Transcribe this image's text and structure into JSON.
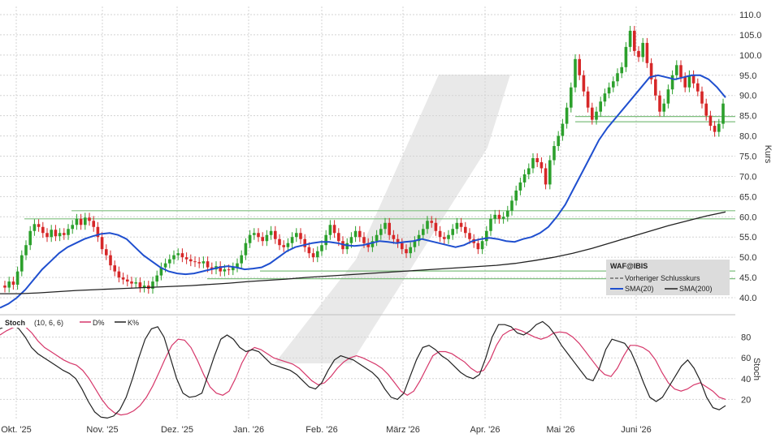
{
  "chart_data": [
    {
      "type": "candlestick",
      "ylabel": "Kurs",
      "ylim": [
        37,
        112
      ],
      "y_ticks": [
        "40.0",
        "45.0",
        "50.0",
        "55.0",
        "60.0",
        "65.0",
        "70.0",
        "75.0",
        "80.0",
        "85.0",
        "90.0",
        "95.0",
        "100.0",
        "105.0",
        "110.0"
      ],
      "x_ticks": [
        "Okt. '25",
        "Nov. '25",
        "Dez. '25",
        "Jan. '26",
        "Feb. '26",
        "März '26",
        "Apr. '26",
        "Mai '26",
        "Juni '26"
      ],
      "grid": true,
      "legend": {
        "placement": "lower-right",
        "title": "WAF@IBIS",
        "entries": [
          {
            "label": "Vorheriger Schlusskurs",
            "style": "dashed",
            "color": "#333333"
          },
          {
            "label": "SMA(20)",
            "color": "#1f4fcf"
          },
          {
            "label": "SMA(200)",
            "color": "#222222"
          }
        ]
      },
      "candles": {
        "up_color": "#2ca02c",
        "down_color": "#d62728",
        "close": [
          42.5,
          44.0,
          43.2,
          46.5,
          50.5,
          53.0,
          56.5,
          58.2,
          57.5,
          56.0,
          55.0,
          56.8,
          55.2,
          56.0,
          55.5,
          57.0,
          58.0,
          59.5,
          58.0,
          59.8,
          59.0,
          57.5,
          55.0,
          52.0,
          50.5,
          48.0,
          46.5,
          45.0,
          44.5,
          44.0,
          43.5,
          43.8,
          42.5,
          43.0,
          42.2,
          44.0,
          45.5,
          47.5,
          48.5,
          49.5,
          50.5,
          51.0,
          50.0,
          49.5,
          49.0,
          48.8,
          48.5,
          49.0,
          47.5,
          47.0,
          47.8,
          46.5,
          47.0,
          46.8,
          47.5,
          48.5,
          50.5,
          53.5,
          55.5,
          56.0,
          55.0,
          54.0,
          55.5,
          56.5,
          54.5,
          53.0,
          52.5,
          53.5,
          55.0,
          56.0,
          54.5,
          52.5,
          51.0,
          50.0,
          51.5,
          53.0,
          55.5,
          58.0,
          56.0,
          54.0,
          52.0,
          53.5,
          55.0,
          56.5,
          55.0,
          53.5,
          52.5,
          54.0,
          55.5,
          57.0,
          58.5,
          55.5,
          54.5,
          53.5,
          52.0,
          51.0,
          52.5,
          54.0,
          55.5,
          57.0,
          59.0,
          58.5,
          56.5,
          55.0,
          54.5,
          55.5,
          57.0,
          58.5,
          57.5,
          56.0,
          54.5,
          53.5,
          52.0,
          54.0,
          56.5,
          59.5,
          60.5,
          59.5,
          60.0,
          61.5,
          64.0,
          66.5,
          68.5,
          70.5,
          72.0,
          74.5,
          73.5,
          72.0,
          68.0,
          74.0,
          77.5,
          80.0,
          83.0,
          87.0,
          92.0,
          99.0,
          95.0,
          91.0,
          87.0,
          84.0,
          86.0,
          88.5,
          90.5,
          92.0,
          93.5,
          95.5,
          97.0,
          102.0,
          106.0,
          101.0,
          99.5,
          103.0,
          98.0,
          94.0,
          90.0,
          86.0,
          88.0,
          91.5,
          95.0,
          97.5,
          94.5,
          92.0,
          95.0,
          93.0,
          91.0,
          88.0,
          85.0,
          82.5,
          81.0,
          83.0,
          88.0
        ],
        "open": [
          43.0,
          42.5,
          44.0,
          43.2,
          46.5,
          50.5,
          53.0,
          56.5,
          58.2,
          57.5,
          56.0,
          55.0,
          56.8,
          55.2,
          56.0,
          55.5,
          57.0,
          58.0,
          59.5,
          58.0,
          59.8,
          59.0,
          57.5,
          55.0,
          52.0,
          50.5,
          48.0,
          46.5,
          45.0,
          44.5,
          44.0,
          43.5,
          43.8,
          42.5,
          43.0,
          42.2,
          44.0,
          45.5,
          47.5,
          48.5,
          49.5,
          50.5,
          51.0,
          50.0,
          49.5,
          49.0,
          48.8,
          48.5,
          49.0,
          47.5,
          47.0,
          47.8,
          46.5,
          47.0,
          46.8,
          47.5,
          48.5,
          50.5,
          53.5,
          55.5,
          56.0,
          55.0,
          54.0,
          55.5,
          56.5,
          54.5,
          53.0,
          52.5,
          53.5,
          55.0,
          56.0,
          54.5,
          52.5,
          51.0,
          50.0,
          51.5,
          53.0,
          55.5,
          58.0,
          56.0,
          54.0,
          52.0,
          53.5,
          55.0,
          56.5,
          55.0,
          53.5,
          52.5,
          54.0,
          55.5,
          57.0,
          58.5,
          55.5,
          54.5,
          53.5,
          52.0,
          51.0,
          52.5,
          54.0,
          55.5,
          57.0,
          59.0,
          58.5,
          56.5,
          55.0,
          54.5,
          55.5,
          57.0,
          58.5,
          57.5,
          56.0,
          54.5,
          53.5,
          52.0,
          54.0,
          56.5,
          59.5,
          60.5,
          59.5,
          60.0,
          61.5,
          64.0,
          66.5,
          68.5,
          70.5,
          72.0,
          74.5,
          73.5,
          72.0,
          68.0,
          74.0,
          77.5,
          80.0,
          83.0,
          87.0,
          92.0,
          99.0,
          95.0,
          91.0,
          87.0,
          84.0,
          86.0,
          88.5,
          90.5,
          92.0,
          93.5,
          95.5,
          97.0,
          102.0,
          106.0,
          101.0,
          99.5,
          103.0,
          98.0,
          94.0,
          90.0,
          86.0,
          88.0,
          91.5,
          95.0,
          97.5,
          94.5,
          92.0,
          95.0,
          93.0,
          91.0,
          88.0,
          85.0,
          82.5,
          81.0,
          83.0
        ]
      },
      "series": [
        {
          "name": "SMA(20)",
          "color": "#1f4fcf",
          "values": [
            37.5,
            38.5,
            40.0,
            42.0,
            44.5,
            47.0,
            49.0,
            51.0,
            52.5,
            53.5,
            54.5,
            55.2,
            55.8,
            56.0,
            55.5,
            54.5,
            52.5,
            50.5,
            49.0,
            47.5,
            46.5,
            46.0,
            45.8,
            46.0,
            46.5,
            47.0,
            47.5,
            47.8,
            47.5,
            47.0,
            47.2,
            47.5,
            48.5,
            50.0,
            51.5,
            52.5,
            53.0,
            53.5,
            53.8,
            53.8,
            53.5,
            53.0,
            52.8,
            53.0,
            53.5,
            54.0,
            53.8,
            53.5,
            53.8,
            54.0,
            54.5,
            54.0,
            53.5,
            53.0,
            52.5,
            53.0,
            54.0,
            54.5,
            54.8,
            54.5,
            54.0,
            53.8,
            54.5,
            55.0,
            56.0,
            57.5,
            60.0,
            63.0,
            67.0,
            71.0,
            75.0,
            79.0,
            82.0,
            84.5,
            87.0,
            89.5,
            92.0,
            94.5,
            95.0,
            94.5,
            94.0,
            94.5,
            95.0,
            95.0,
            94.0,
            92.0,
            89.5
          ]
        },
        {
          "name": "SMA(200)",
          "color": "#222222",
          "values": [
            41.0,
            41.0,
            41.2,
            41.5,
            41.8,
            42.0,
            42.2,
            42.4,
            42.6,
            42.8,
            43.0,
            43.3,
            43.6,
            44.0,
            44.3,
            44.6,
            45.0,
            45.3,
            45.6,
            45.9,
            46.2,
            46.5,
            46.8,
            47.1,
            47.4,
            47.7,
            48.0,
            48.5,
            49.2,
            50.0,
            51.0,
            52.2,
            53.6,
            55.0,
            56.4,
            57.8,
            59.0,
            60.2,
            61.2
          ]
        }
      ],
      "horizontal_lines": [
        44.7,
        46.6,
        59.5,
        61.5,
        83.5,
        84.8
      ]
    },
    {
      "type": "line",
      "ylabel": "Stoch",
      "ylim": [
        0,
        100
      ],
      "y_ticks": [
        "20",
        "40",
        "60",
        "80"
      ],
      "legend": {
        "placement": "top-left",
        "title": "Stoch",
        "params": "(10, 6, 6)",
        "entries": [
          {
            "label": "D%",
            "color": "#d6376a"
          },
          {
            "label": "K%",
            "color": "#222222"
          }
        ]
      },
      "series": [
        {
          "name": "D%",
          "color": "#d6376a",
          "values": [
            82,
            86,
            89,
            91,
            90,
            84,
            76,
            70,
            66,
            62,
            58,
            55,
            53,
            48,
            40,
            30,
            20,
            12,
            7,
            5,
            6,
            9,
            14,
            22,
            33,
            46,
            60,
            72,
            78,
            77,
            70,
            58,
            44,
            32,
            26,
            24,
            28,
            40,
            55,
            66,
            70,
            68,
            64,
            60,
            58,
            56,
            54,
            50,
            44,
            38,
            34,
            36,
            42,
            50,
            56,
            60,
            62,
            60,
            57,
            54,
            50,
            44,
            36,
            28,
            24,
            28,
            38,
            50,
            62,
            66,
            66,
            64,
            60,
            56,
            50,
            46,
            48,
            58,
            72,
            82,
            86,
            88,
            86,
            83,
            80,
            78,
            80,
            84,
            85,
            84,
            80,
            74,
            66,
            58,
            50,
            44,
            42,
            50,
            62,
            72,
            72,
            70,
            66,
            58,
            46,
            36,
            30,
            28,
            30,
            34,
            36,
            32,
            28,
            22,
            20
          ]
        },
        {
          "name": "K%",
          "color": "#222222",
          "values": [
            88,
            91,
            92,
            88,
            80,
            70,
            64,
            60,
            56,
            52,
            48,
            45,
            40,
            30,
            18,
            8,
            3,
            2,
            4,
            10,
            22,
            40,
            60,
            78,
            88,
            90,
            80,
            60,
            40,
            26,
            22,
            23,
            26,
            44,
            62,
            78,
            82,
            78,
            70,
            66,
            68,
            66,
            60,
            54,
            52,
            50,
            48,
            44,
            38,
            32,
            30,
            36,
            48,
            58,
            62,
            60,
            58,
            54,
            50,
            46,
            40,
            30,
            22,
            20,
            26,
            42,
            58,
            70,
            72,
            68,
            62,
            58,
            52,
            46,
            42,
            40,
            44,
            60,
            80,
            92,
            92,
            90,
            84,
            82,
            86,
            92,
            95,
            90,
            82,
            72,
            64,
            56,
            48,
            40,
            38,
            50,
            68,
            78,
            76,
            74,
            66,
            52,
            36,
            22,
            18,
            22,
            32,
            42,
            52,
            58,
            50,
            38,
            22,
            12,
            10,
            14
          ]
        }
      ]
    }
  ],
  "colors": {
    "grid": "#cfcfcf",
    "support_lines": "#7fbf7f",
    "legend_bg": "#d9d9d9",
    "watermark": "#e6e6e6"
  }
}
